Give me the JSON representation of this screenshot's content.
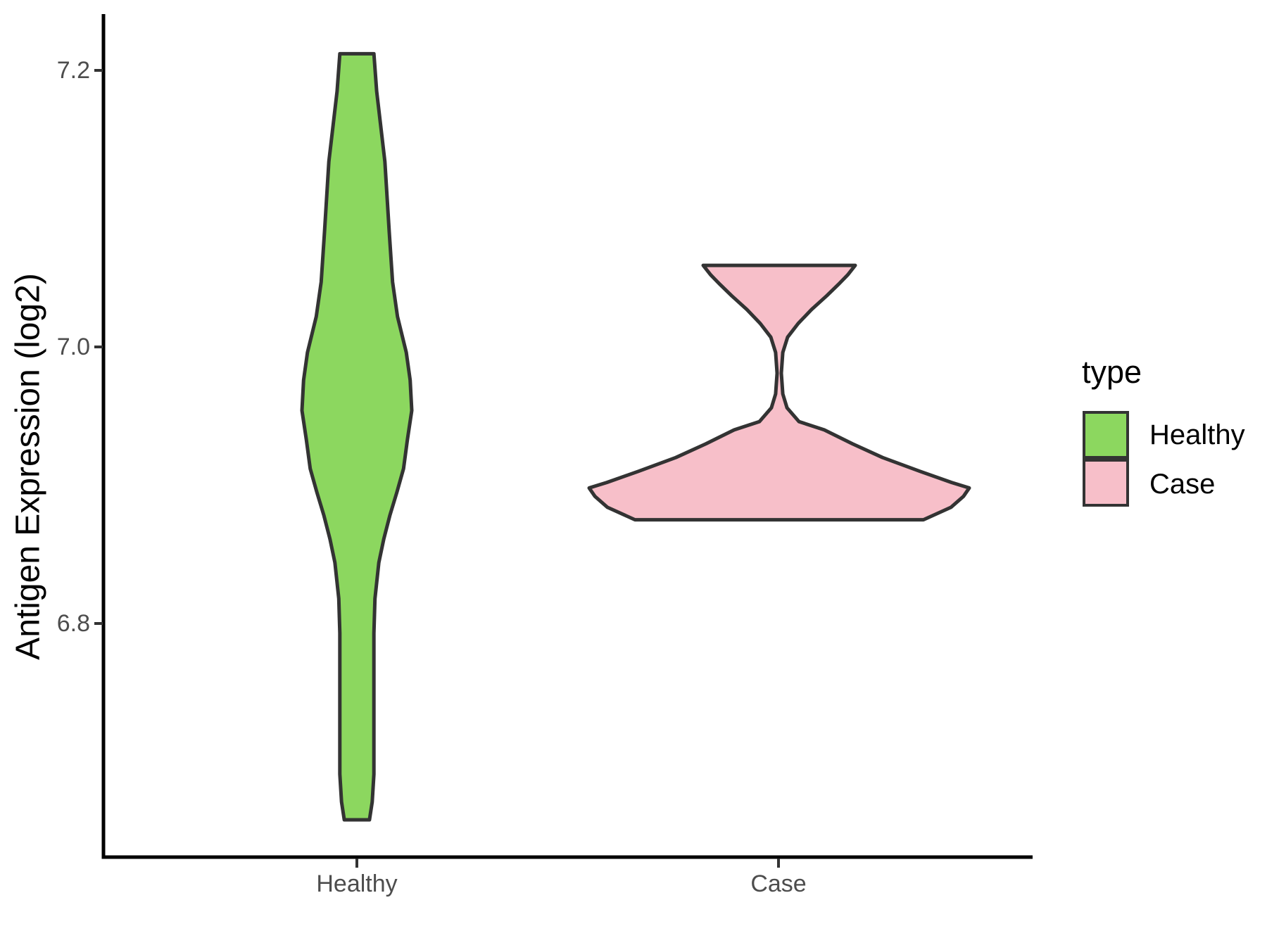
{
  "figure": {
    "background": "#ffffff"
  },
  "y_axis": {
    "title": "Antigen Expression (log2)",
    "ticks": [
      "7.2",
      "7.0",
      "6.8"
    ],
    "tick_values": [
      7.2,
      7.0,
      6.8
    ],
    "text_color": "#4d4d4d"
  },
  "x_axis": {
    "categories": [
      "Healthy",
      "Case"
    ],
    "text_color": "#4d4d4d"
  },
  "legend": {
    "title": "type",
    "items": [
      {
        "label": "Healthy",
        "color": "#8cd75f"
      },
      {
        "label": "Case",
        "color": "#f7bfc9"
      }
    ]
  },
  "chart_data": {
    "type": "violin",
    "title": "",
    "xlabel": "",
    "ylabel": "Antigen Expression (log2)",
    "ylim": [
      6.63,
      7.24
    ],
    "yticks": [
      6.8,
      7.0,
      7.2
    ],
    "grid": "off",
    "legend_position": "right",
    "outline_color": "#333333",
    "categories": [
      "Healthy",
      "Case"
    ],
    "series": [
      {
        "name": "Healthy",
        "fill": "#8cd75f",
        "range": [
          6.658,
          7.212
        ],
        "peak_value": 6.954,
        "profile": [
          [
            7.212,
            0.31
          ],
          [
            7.185,
            0.36
          ],
          [
            7.134,
            0.51
          ],
          [
            7.083,
            0.59
          ],
          [
            7.047,
            0.65
          ],
          [
            7.022,
            0.74
          ],
          [
            6.996,
            0.9
          ],
          [
            6.976,
            0.97
          ],
          [
            6.954,
            1.0
          ],
          [
            6.933,
            0.92
          ],
          [
            6.912,
            0.85
          ],
          [
            6.895,
            0.73
          ],
          [
            6.878,
            0.6
          ],
          [
            6.861,
            0.49
          ],
          [
            6.844,
            0.4
          ],
          [
            6.818,
            0.33
          ],
          [
            6.793,
            0.31
          ],
          [
            6.742,
            0.31
          ],
          [
            6.691,
            0.31
          ],
          [
            6.671,
            0.28
          ],
          [
            6.658,
            0.23
          ]
        ]
      },
      {
        "name": "Case",
        "fill": "#f7bfc9",
        "range": [
          6.875,
          7.059
        ],
        "peak_value": 6.898,
        "profile": [
          [
            7.059,
            0.4
          ],
          [
            7.052,
            0.36
          ],
          [
            7.045,
            0.31
          ],
          [
            7.037,
            0.25
          ],
          [
            7.027,
            0.17
          ],
          [
            7.017,
            0.1
          ],
          [
            7.007,
            0.044
          ],
          [
            6.996,
            0.019
          ],
          [
            6.981,
            0.011
          ],
          [
            6.966,
            0.019
          ],
          [
            6.956,
            0.041
          ],
          [
            6.946,
            0.104
          ],
          [
            6.94,
            0.237
          ],
          [
            6.93,
            0.385
          ],
          [
            6.92,
            0.544
          ],
          [
            6.91,
            0.741
          ],
          [
            6.902,
            0.907
          ],
          [
            6.898,
            1.0
          ],
          [
            6.892,
            0.97
          ],
          [
            6.884,
            0.904
          ],
          [
            6.875,
            0.759
          ]
        ]
      }
    ]
  }
}
